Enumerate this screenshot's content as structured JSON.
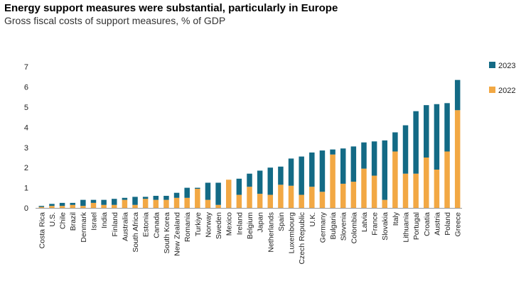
{
  "chart_data": {
    "type": "bar",
    "stacked": true,
    "title": "Energy support measures were substantial, particularly in Europe",
    "subtitle": "Gross fiscal costs of support measures, % of GDP",
    "xlabel": "",
    "ylabel": "",
    "ylim": [
      0,
      7
    ],
    "yticks": [
      0,
      1,
      2,
      3,
      4,
      5,
      6,
      7
    ],
    "grid": false,
    "legend_position": "right",
    "categories": [
      "Costa Rica",
      "U.S.",
      "Chile",
      "Brazil",
      "Denmark",
      "Israel",
      "India",
      "Finland",
      "Australia",
      "South Africa",
      "Estonia",
      "Canada",
      "South Korea",
      "New Zealand",
      "Romania",
      "Turkiye",
      "Norway",
      "Sweden",
      "Mexico",
      "Ireland",
      "Belgium",
      "Japan",
      "Netherlands",
      "Spain",
      "Luxembourg",
      "Czech Republic",
      "U.K.",
      "Germany",
      "Bulgaria",
      "Slovenia",
      "Colombia",
      "Latvia",
      "France",
      "Slovakia",
      "Italy",
      "Lithuania",
      "Portugal",
      "Croatia",
      "Austria",
      "Poland",
      "Greece"
    ],
    "series": [
      {
        "name": "2022",
        "color": "#F2A844",
        "values": [
          0.05,
          0.1,
          0.1,
          0.15,
          0.1,
          0.25,
          0.15,
          0.15,
          0.4,
          0.15,
          0.45,
          0.4,
          0.4,
          0.5,
          0.5,
          0.95,
          0.4,
          0.15,
          1.4,
          0.65,
          1.05,
          0.7,
          0.65,
          1.15,
          1.1,
          0.65,
          1.05,
          0.8,
          2.65,
          1.2,
          1.3,
          1.95,
          1.6,
          0.4,
          2.8,
          1.7,
          1.7,
          2.5,
          1.9,
          2.8,
          4.85
        ]
      },
      {
        "name": "2023",
        "color": "#136A85",
        "values": [
          0.05,
          0.1,
          0.15,
          0.1,
          0.3,
          0.15,
          0.25,
          0.3,
          0.1,
          0.4,
          0.1,
          0.2,
          0.2,
          0.25,
          0.5,
          0.05,
          0.85,
          1.1,
          0.0,
          0.8,
          0.65,
          1.15,
          1.35,
          0.9,
          1.35,
          1.9,
          1.7,
          2.05,
          0.25,
          1.75,
          1.75,
          1.3,
          1.7,
          2.95,
          0.95,
          2.4,
          3.1,
          2.6,
          3.25,
          2.4,
          1.5
        ]
      }
    ]
  }
}
